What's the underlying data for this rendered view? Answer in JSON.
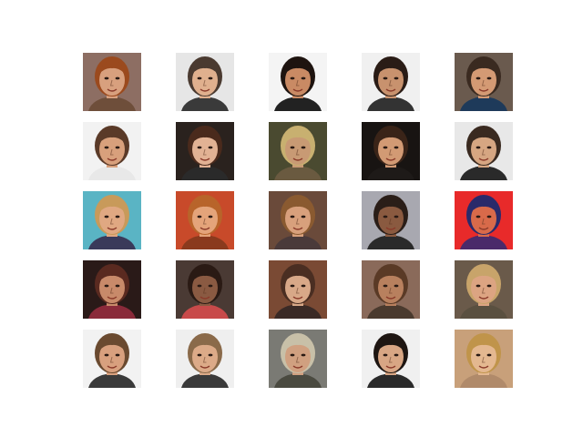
{
  "figure": {
    "background": "#ffffff",
    "grid": {
      "rows": 5,
      "cols": 5
    },
    "faces": [
      {
        "bg": "#8d6e63",
        "hair": "#9b4a1e",
        "skin": "#d8a07e",
        "shirt": "#6e4e3a"
      },
      {
        "bg": "#e6e6e6",
        "hair": "#4a3a30",
        "skin": "#e0b08e",
        "shirt": "#3a3a3a"
      },
      {
        "bg": "#f4f4f4",
        "hair": "#1e1410",
        "skin": "#c98a64",
        "shirt": "#222222"
      },
      {
        "bg": "#f0f0f0",
        "hair": "#2a1c16",
        "skin": "#c8926e",
        "shirt": "#333333"
      },
      {
        "bg": "#6a5a4e",
        "hair": "#3a2a20",
        "skin": "#d49a74",
        "shirt": "#1e3a5a"
      },
      {
        "bg": "#f2f2f2",
        "hair": "#5a3a28",
        "skin": "#d8a07c",
        "shirt": "#e8e8e8"
      },
      {
        "bg": "#2a221e",
        "hair": "#4a2a1c",
        "skin": "#e2b294",
        "shirt": "#2a2a2a"
      },
      {
        "bg": "#4a4a30",
        "hair": "#c8b070",
        "skin": "#c89a74",
        "shirt": "#6a5a40"
      },
      {
        "bg": "#181412",
        "hair": "#3a2418",
        "skin": "#d29a74",
        "shirt": "#1e1a18"
      },
      {
        "bg": "#e8e8e8",
        "hair": "#3a2a20",
        "skin": "#d6a682",
        "shirt": "#2a2a2a"
      },
      {
        "bg": "#5ab4c4",
        "hair": "#c89a5a",
        "skin": "#e0a882",
        "shirt": "#3a3a5a"
      },
      {
        "bg": "#c84a2a",
        "hair": "#b8642a",
        "skin": "#e4a47a",
        "shirt": "#8a3a1e"
      },
      {
        "bg": "#6a4a3a",
        "hair": "#8a5a30",
        "skin": "#d8a07c",
        "shirt": "#4a3a3a"
      },
      {
        "bg": "#a8a8b0",
        "hair": "#2a1e18",
        "skin": "#8a5a40",
        "shirt": "#2a2a2a"
      },
      {
        "bg": "#e82a2a",
        "hair": "#2a2a6a",
        "skin": "#d86a4a",
        "shirt": "#4a2a6a"
      },
      {
        "bg": "#2a1a18",
        "hair": "#5a2a20",
        "skin": "#c88a6a",
        "shirt": "#8a2a3a"
      },
      {
        "bg": "#4a3a34",
        "hair": "#2a1a14",
        "skin": "#8a5a42",
        "shirt": "#c84a4a"
      },
      {
        "bg": "#7a4a34",
        "hair": "#4a2e22",
        "skin": "#d8a888",
        "shirt": "#3a2a26"
      },
      {
        "bg": "#8a6a5a",
        "hair": "#5a3a26",
        "skin": "#b8805e",
        "shirt": "#4a3a2e"
      },
      {
        "bg": "#6a5a4a",
        "hair": "#c8a46a",
        "skin": "#dca482",
        "shirt": "#5a5040"
      },
      {
        "bg": "#f2f2f2",
        "hair": "#6a4a30",
        "skin": "#d8a07e",
        "shirt": "#3a3a3a"
      },
      {
        "bg": "#efefef",
        "hair": "#8a6a4a",
        "skin": "#dcaa88",
        "shirt": "#3a3a3a"
      },
      {
        "bg": "#7a7a74",
        "hair": "#c8c0a8",
        "skin": "#d0a080",
        "shirt": "#4a4a40"
      },
      {
        "bg": "#f0f0f0",
        "hair": "#1e1612",
        "skin": "#d8a684",
        "shirt": "#2a2a2a"
      },
      {
        "bg": "#c8a07a",
        "hair": "#c0944a",
        "skin": "#e4b890",
        "shirt": "#b08a6a"
      }
    ]
  }
}
